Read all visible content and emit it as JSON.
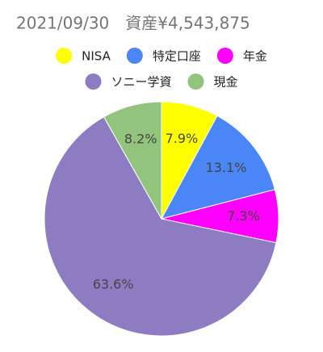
{
  "chart_data": {
    "type": "pie",
    "title": "2021/09/30　資産¥4,543,875",
    "categories": [
      "NISA",
      "特定口座",
      "年金",
      "ソニー学資",
      "現金"
    ],
    "values": [
      7.9,
      13.1,
      7.3,
      63.6,
      8.2
    ],
    "value_labels": [
      "7.9%",
      "13.1%",
      "7.3%",
      "63.6%",
      "8.2%"
    ],
    "colors": [
      "#ffff00",
      "#4a86f5",
      "#ff00ff",
      "#8e7cc3",
      "#93c47d"
    ],
    "legend": "top"
  }
}
